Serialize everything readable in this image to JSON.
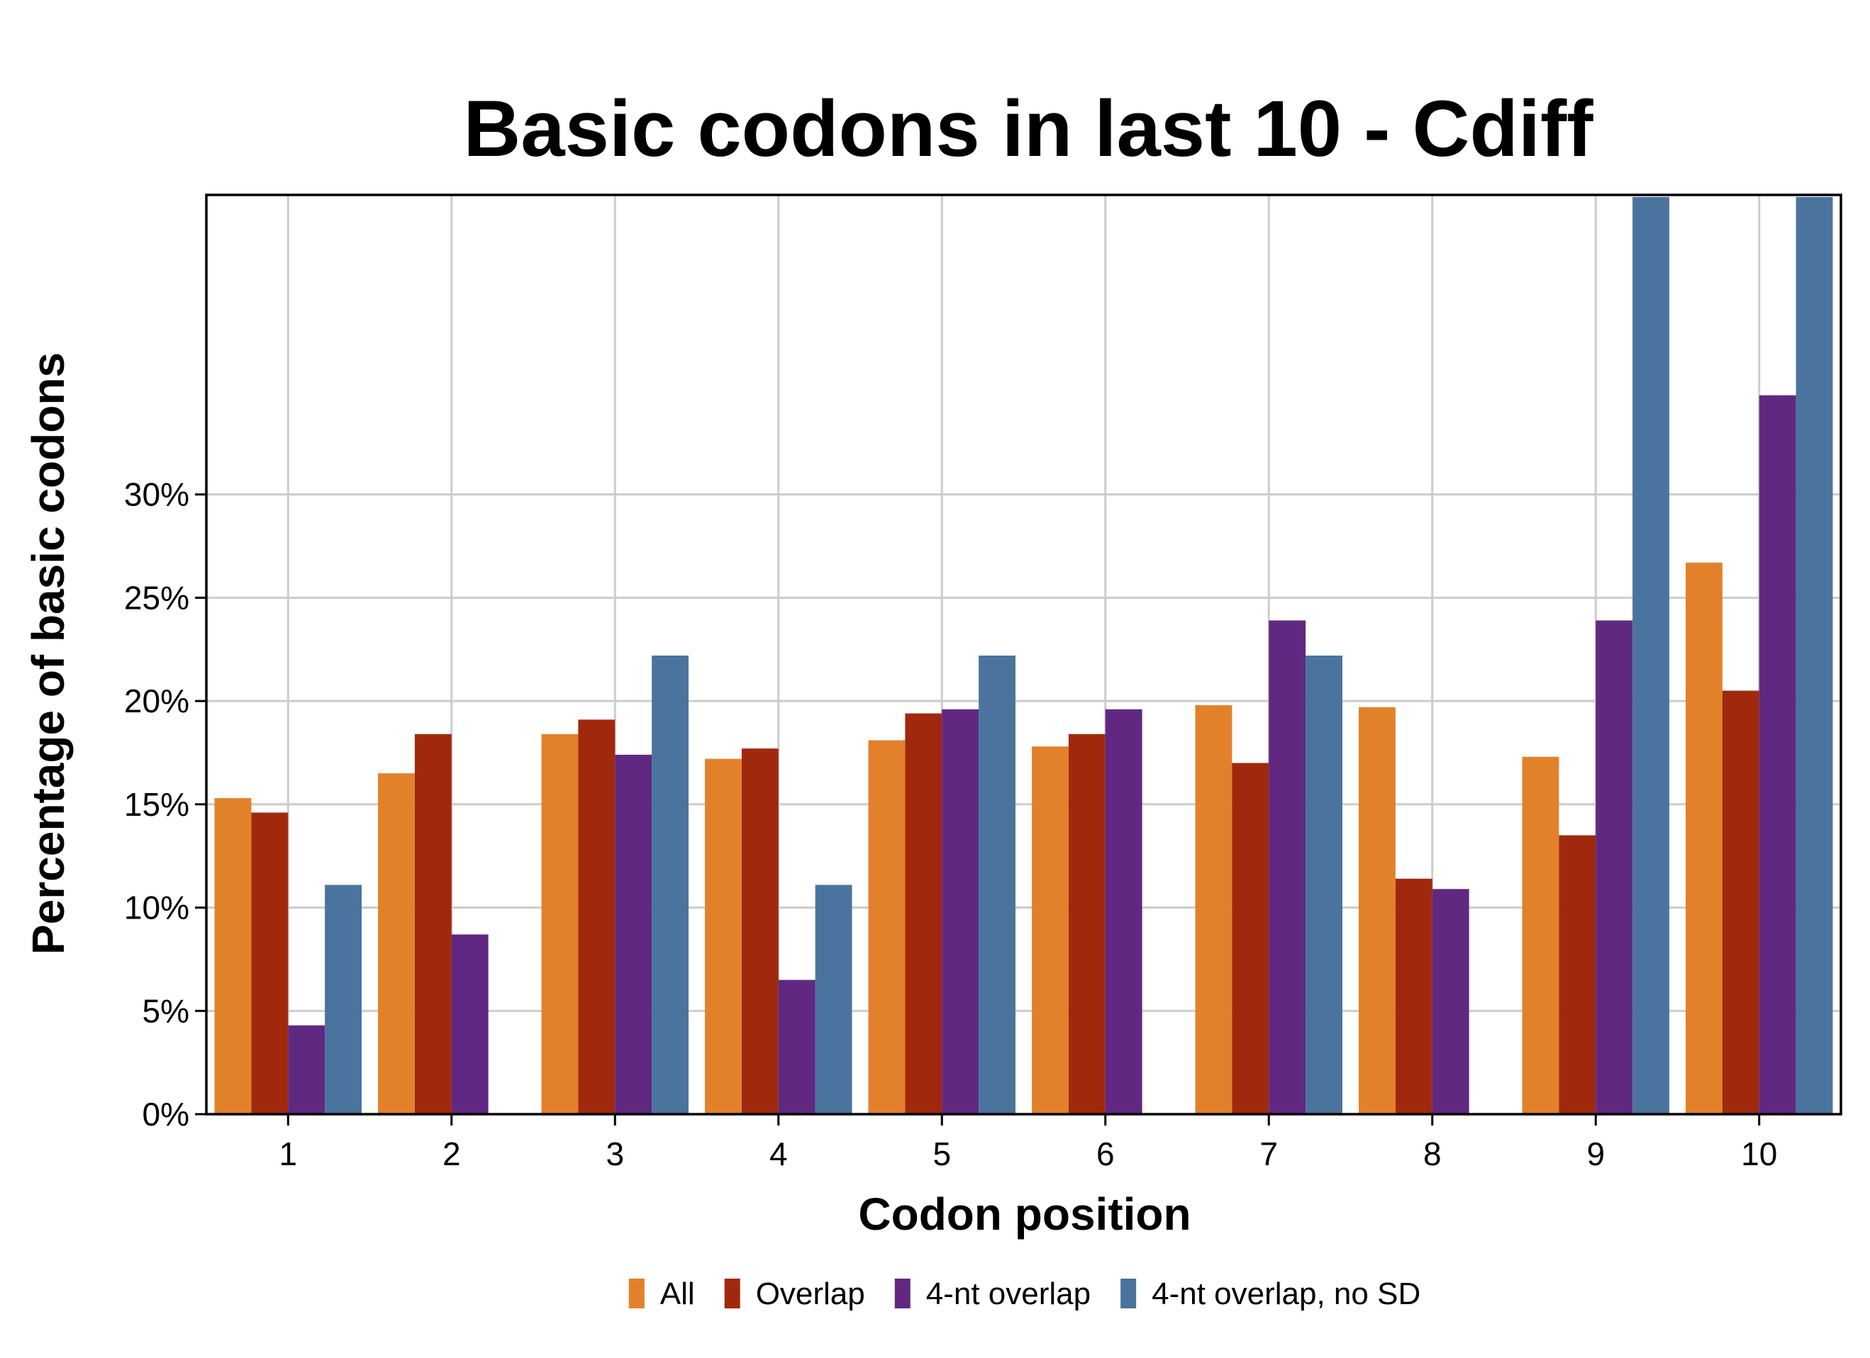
{
  "chart_data": {
    "type": "bar",
    "title": "Basic codons in last 10 - Cdiff",
    "xlabel": "Codon position",
    "ylabel": "Percentage of basic codons",
    "categories": [
      "1",
      "2",
      "3",
      "4",
      "5",
      "6",
      "7",
      "8",
      "9",
      "10"
    ],
    "ylim": [
      0,
      44.5
    ],
    "yticks": [
      0,
      5,
      10,
      15,
      20,
      25,
      30
    ],
    "ytick_labels": [
      "0%",
      "5%",
      "10%",
      "15%",
      "20%",
      "25%",
      "30%"
    ],
    "grid": true,
    "legend_position": "bottom",
    "series": [
      {
        "name": "All",
        "color": "#E3812B",
        "values": [
          15.3,
          16.5,
          18.4,
          17.2,
          18.1,
          17.8,
          19.8,
          19.7,
          17.3,
          26.7
        ]
      },
      {
        "name": "Overlap",
        "color": "#A0290D",
        "values": [
          14.6,
          18.4,
          19.1,
          17.7,
          19.4,
          18.4,
          17.0,
          11.4,
          13.5,
          20.5
        ]
      },
      {
        "name": "4-nt overlap",
        "color": "#612882",
        "values": [
          4.3,
          8.7,
          17.4,
          6.5,
          19.6,
          19.6,
          23.9,
          10.9,
          23.9,
          34.8
        ]
      },
      {
        "name": "4-nt overlap, no SD",
        "color": "#4A749E",
        "values": [
          11.1,
          null,
          22.2,
          11.1,
          22.2,
          null,
          22.2,
          null,
          44.4,
          44.4
        ]
      }
    ]
  }
}
